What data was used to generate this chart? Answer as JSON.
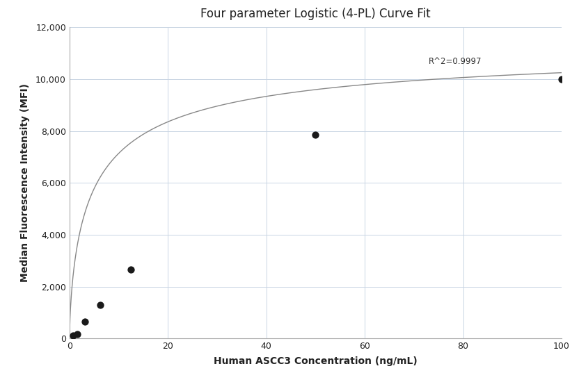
{
  "title": "Four parameter Logistic (4-PL) Curve Fit",
  "xlabel": "Human ASCC3 Concentration (ng/mL)",
  "ylabel": "Median Fluorescence Intensity (MFI)",
  "scatter_x": [
    0.78,
    1.56,
    3.125,
    6.25,
    12.5,
    50,
    100
  ],
  "scatter_y": [
    100,
    170,
    650,
    1280,
    2650,
    7850,
    10000
  ],
  "xlim": [
    0,
    100
  ],
  "ylim": [
    0,
    12000
  ],
  "yticks": [
    0,
    2000,
    4000,
    6000,
    8000,
    10000,
    12000
  ],
  "xticks": [
    0,
    20,
    40,
    60,
    80,
    100
  ],
  "r_squared": "R^2=0.9997",
  "r2_x": 73,
  "r2_y": 10500,
  "background_color": "#ffffff",
  "grid_color": "#c8d4e3",
  "dot_color": "#1a1a1a",
  "line_color": "#888888",
  "title_fontsize": 12,
  "label_fontsize": 10,
  "annot_fontsize": 8.5
}
